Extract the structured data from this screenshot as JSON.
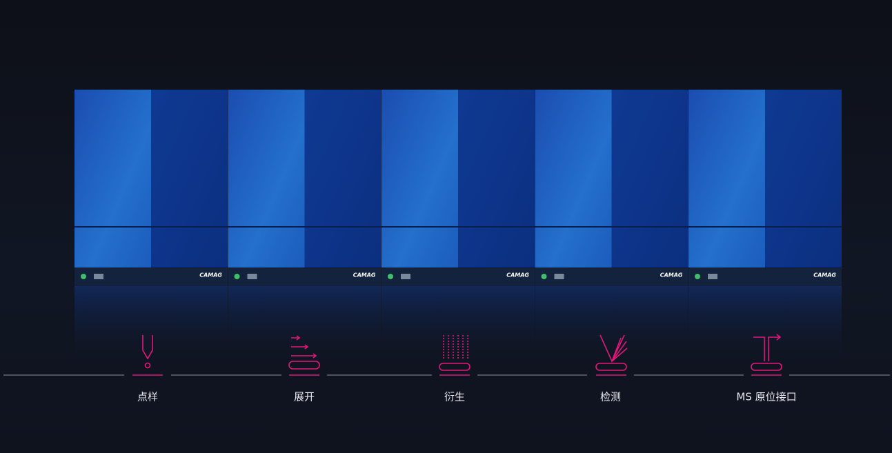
{
  "brand": "CAMAG",
  "steps": [
    {
      "label": "点样"
    },
    {
      "label": "展开"
    },
    {
      "label": "衍生"
    },
    {
      "label": "检测"
    },
    {
      "label": "MS 原位接口"
    }
  ]
}
